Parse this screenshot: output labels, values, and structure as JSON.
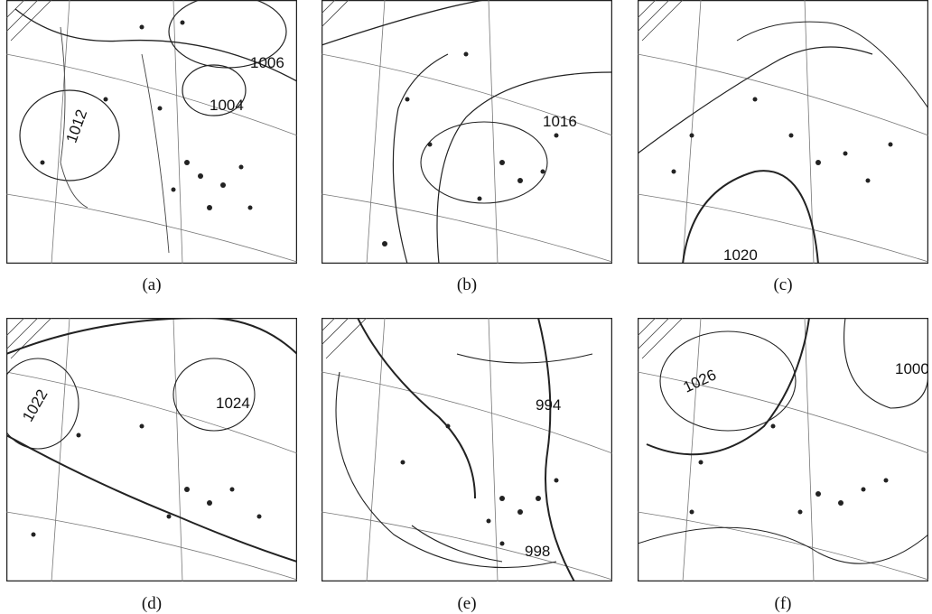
{
  "panels": [
    {
      "caption": "(a)",
      "isobar_labels": [
        "1006",
        "1004",
        "1012"
      ]
    },
    {
      "caption": "(b)",
      "isobar_labels": [
        "1016"
      ]
    },
    {
      "caption": "(c)",
      "isobar_labels": [
        "1020"
      ]
    },
    {
      "caption": "(d)",
      "isobar_labels": [
        "1024",
        "1022"
      ]
    },
    {
      "caption": "(e)",
      "isobar_labels": [
        "994",
        "998"
      ]
    },
    {
      "caption": "(f)",
      "isobar_labels": [
        "1026",
        "1000"
      ]
    }
  ]
}
